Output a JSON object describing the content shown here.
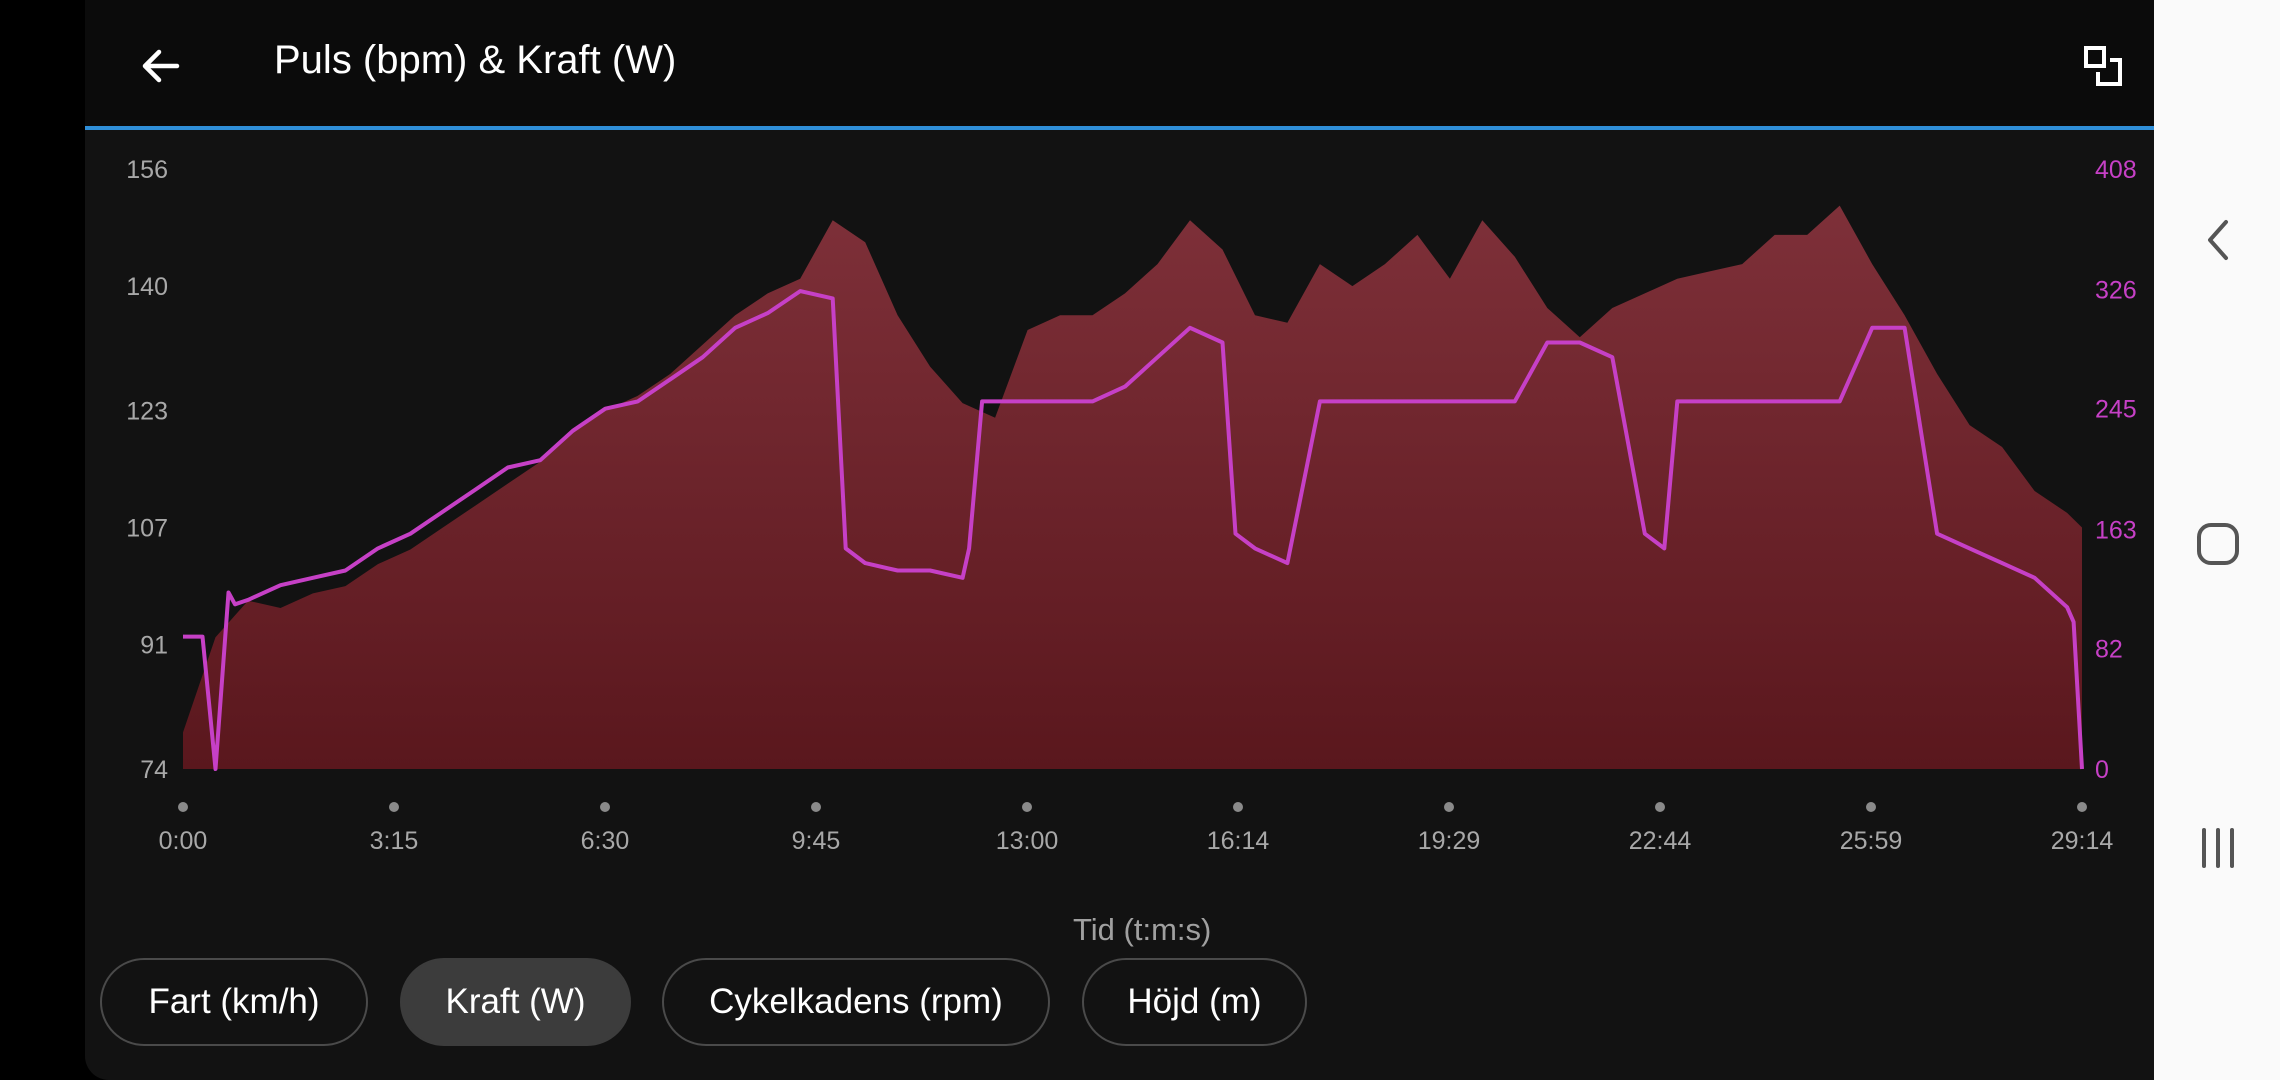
{
  "header": {
    "title": "Puls (bpm) & Kraft (W)",
    "back_icon": "back-arrow-icon",
    "fullscreen_icon": "exit-fullscreen-icon"
  },
  "chart_data": {
    "type": "area",
    "title": "Puls (bpm) & Kraft (W)",
    "xlabel": "Tid (t:m:s)",
    "x_ticks": [
      "0:00",
      "3:15",
      "6:30",
      "9:45",
      "13:00",
      "16:14",
      "19:29",
      "22:44",
      "25:59",
      "29:14"
    ],
    "y_left_ticks": [
      74,
      91,
      107,
      123,
      140,
      156
    ],
    "y_right_ticks": [
      0,
      82,
      163,
      245,
      326,
      408
    ],
    "y_left_range": [
      74,
      156
    ],
    "y_right_range": [
      0,
      408
    ],
    "x_range_minutes": [
      0,
      29.23
    ],
    "colors": {
      "heart_rate_fill": "#7a2a32",
      "power_line": "#c640c6",
      "right_axis_text": "#c640c6"
    },
    "series": [
      {
        "name": "Puls (bpm)",
        "axis": "left",
        "style": "area",
        "x": [
          0,
          0.5,
          1,
          1.5,
          2,
          2.5,
          3,
          3.5,
          4,
          4.5,
          5,
          5.5,
          6,
          6.5,
          7,
          7.5,
          8,
          8.5,
          9,
          9.5,
          10,
          10.5,
          11,
          11.5,
          12,
          12.5,
          13,
          13.5,
          14,
          14.5,
          15,
          15.5,
          16,
          16.5,
          17,
          17.5,
          18,
          18.5,
          19,
          19.5,
          20,
          20.5,
          21,
          21.5,
          22,
          22.5,
          23,
          23.5,
          24,
          24.5,
          25,
          25.5,
          26,
          26.5,
          27,
          27.5,
          28,
          28.5,
          29,
          29.23
        ],
        "values": [
          79,
          92,
          97,
          96,
          98,
          99,
          102,
          104,
          107,
          110,
          113,
          116,
          120,
          123,
          125,
          128,
          132,
          136,
          139,
          141,
          149,
          146,
          136,
          129,
          124,
          122,
          134,
          136,
          136,
          139,
          143,
          149,
          145,
          136,
          135,
          143,
          140,
          143,
          147,
          141,
          149,
          144,
          137,
          133,
          137,
          139,
          141,
          142,
          143,
          147,
          147,
          151,
          143,
          136,
          128,
          121,
          118,
          112,
          109,
          107
        ],
        "unit": "bpm"
      },
      {
        "name": "Kraft (W)",
        "axis": "right",
        "style": "line",
        "x": [
          0,
          0.3,
          0.5,
          0.7,
          0.8,
          1,
          1.5,
          2,
          2.5,
          3,
          3.5,
          4,
          4.5,
          5,
          5.5,
          6,
          6.5,
          7,
          7.5,
          8,
          8.5,
          9,
          9.5,
          10,
          10.2,
          10.5,
          11,
          11.5,
          12,
          12.1,
          12.3,
          12.5,
          13,
          13.5,
          14,
          14.5,
          15,
          15.5,
          16,
          16.2,
          16.5,
          17,
          17.5,
          18,
          18.5,
          19,
          19.5,
          20,
          20.5,
          21,
          21.5,
          22,
          22.5,
          22.8,
          23,
          23.5,
          24,
          24.5,
          25,
          25.5,
          26,
          26.5,
          27,
          27.5,
          28,
          28.5,
          29,
          29.1,
          29.23
        ],
        "values": [
          90,
          90,
          0,
          120,
          112,
          115,
          125,
          130,
          135,
          150,
          160,
          175,
          190,
          205,
          210,
          230,
          245,
          250,
          265,
          280,
          300,
          310,
          325,
          320,
          150,
          140,
          135,
          135,
          130,
          150,
          250,
          250,
          250,
          250,
          250,
          260,
          280,
          300,
          290,
          160,
          150,
          140,
          250,
          250,
          250,
          250,
          250,
          250,
          250,
          290,
          290,
          280,
          160,
          150,
          250,
          250,
          250,
          250,
          250,
          250,
          300,
          300,
          160,
          150,
          140,
          130,
          110,
          100,
          0
        ],
        "unit": "W"
      }
    ],
    "buttons": [
      "Fart (km/h)",
      "Kraft (W)",
      "Cykelkadens (rpm)",
      "Höjd (m)"
    ],
    "selected_button": "Kraft (W)"
  },
  "metric_buttons": [
    {
      "label": "Fart (km/h)",
      "active": false
    },
    {
      "label": "Kraft (W)",
      "active": true
    },
    {
      "label": "Cykelkadens (rpm)",
      "active": false
    },
    {
      "label": "Höjd (m)",
      "active": false
    }
  ],
  "nav": {
    "back_icon": "nav-back-icon",
    "home_icon": "nav-home-icon",
    "recents_icon": "nav-recents-icon"
  }
}
